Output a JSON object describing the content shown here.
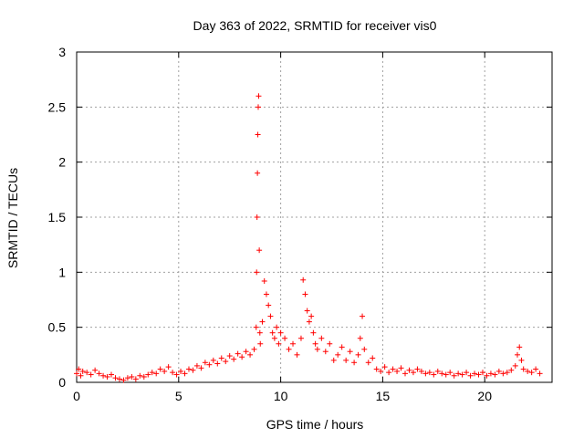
{
  "chart_data": {
    "type": "scatter",
    "title": "Day 363 of 2022, SRMTID for receiver vis0",
    "xlabel": "GPS time / hours",
    "ylabel": "SRMTID / TECUs",
    "xlim": [
      0,
      23.3
    ],
    "ylim": [
      0,
      3
    ],
    "x_ticks": [
      0,
      5,
      10,
      15,
      20
    ],
    "y_ticks": [
      0,
      0.5,
      1,
      1.5,
      2,
      2.5,
      3
    ],
    "x_tick_labels": [
      "0",
      "5",
      "10",
      "15",
      "20"
    ],
    "y_tick_labels": [
      "0",
      "0.5",
      "1",
      "1.5",
      "2",
      "2.5",
      "3"
    ],
    "grid": true,
    "marker": "+",
    "series": [
      {
        "name": "SRMTID",
        "color": "#ff0000",
        "x": [
          0.0,
          0.1,
          0.2,
          0.3,
          0.5,
          0.7,
          0.9,
          1.1,
          1.3,
          1.5,
          1.7,
          1.9,
          2.1,
          2.3,
          2.5,
          2.7,
          2.9,
          3.1,
          3.3,
          3.5,
          3.7,
          3.9,
          4.1,
          4.3,
          4.5,
          4.7,
          4.9,
          5.1,
          5.3,
          5.5,
          5.7,
          5.9,
          6.1,
          6.3,
          6.5,
          6.7,
          6.9,
          7.1,
          7.3,
          7.5,
          7.7,
          7.9,
          8.1,
          8.3,
          8.5,
          8.7,
          8.8,
          8.82,
          8.84,
          8.86,
          8.88,
          8.9,
          8.92,
          8.95,
          8.98,
          9.0,
          9.1,
          9.2,
          9.3,
          9.4,
          9.5,
          9.6,
          9.7,
          9.8,
          9.9,
          10.0,
          10.2,
          10.4,
          10.6,
          10.8,
          11.0,
          11.1,
          11.2,
          11.3,
          11.4,
          11.5,
          11.6,
          11.7,
          11.8,
          12.0,
          12.2,
          12.4,
          12.6,
          12.8,
          13.0,
          13.2,
          13.4,
          13.6,
          13.8,
          13.9,
          14.0,
          14.1,
          14.3,
          14.5,
          14.7,
          14.9,
          15.1,
          15.3,
          15.5,
          15.7,
          15.9,
          16.1,
          16.3,
          16.5,
          16.7,
          16.9,
          17.1,
          17.3,
          17.5,
          17.7,
          17.9,
          18.1,
          18.3,
          18.5,
          18.7,
          18.9,
          19.1,
          19.3,
          19.5,
          19.7,
          19.9,
          20.1,
          20.3,
          20.5,
          20.7,
          20.9,
          21.1,
          21.3,
          21.5,
          21.6,
          21.7,
          21.8,
          21.9,
          22.1,
          22.3,
          22.5,
          22.7
        ],
        "y": [
          0.08,
          0.12,
          0.06,
          0.1,
          0.09,
          0.07,
          0.11,
          0.08,
          0.06,
          0.05,
          0.07,
          0.04,
          0.03,
          0.02,
          0.04,
          0.05,
          0.03,
          0.06,
          0.05,
          0.07,
          0.09,
          0.08,
          0.12,
          0.1,
          0.14,
          0.09,
          0.07,
          0.1,
          0.08,
          0.12,
          0.11,
          0.15,
          0.13,
          0.18,
          0.16,
          0.2,
          0.17,
          0.22,
          0.19,
          0.24,
          0.21,
          0.26,
          0.23,
          0.28,
          0.25,
          0.3,
          0.5,
          1.0,
          1.5,
          1.9,
          2.25,
          2.5,
          2.6,
          1.2,
          0.45,
          0.35,
          0.55,
          0.92,
          0.8,
          0.7,
          0.6,
          0.45,
          0.4,
          0.5,
          0.35,
          0.45,
          0.4,
          0.3,
          0.35,
          0.25,
          0.4,
          0.93,
          0.8,
          0.65,
          0.55,
          0.6,
          0.45,
          0.35,
          0.3,
          0.4,
          0.28,
          0.35,
          0.2,
          0.25,
          0.32,
          0.2,
          0.28,
          0.18,
          0.25,
          0.4,
          0.6,
          0.3,
          0.18,
          0.22,
          0.12,
          0.1,
          0.14,
          0.09,
          0.12,
          0.1,
          0.13,
          0.08,
          0.11,
          0.09,
          0.12,
          0.1,
          0.08,
          0.09,
          0.07,
          0.1,
          0.08,
          0.07,
          0.09,
          0.06,
          0.08,
          0.07,
          0.09,
          0.06,
          0.08,
          0.07,
          0.09,
          0.06,
          0.08,
          0.07,
          0.1,
          0.08,
          0.09,
          0.11,
          0.15,
          0.25,
          0.32,
          0.2,
          0.12,
          0.1,
          0.09,
          0.12,
          0.08
        ]
      }
    ]
  }
}
